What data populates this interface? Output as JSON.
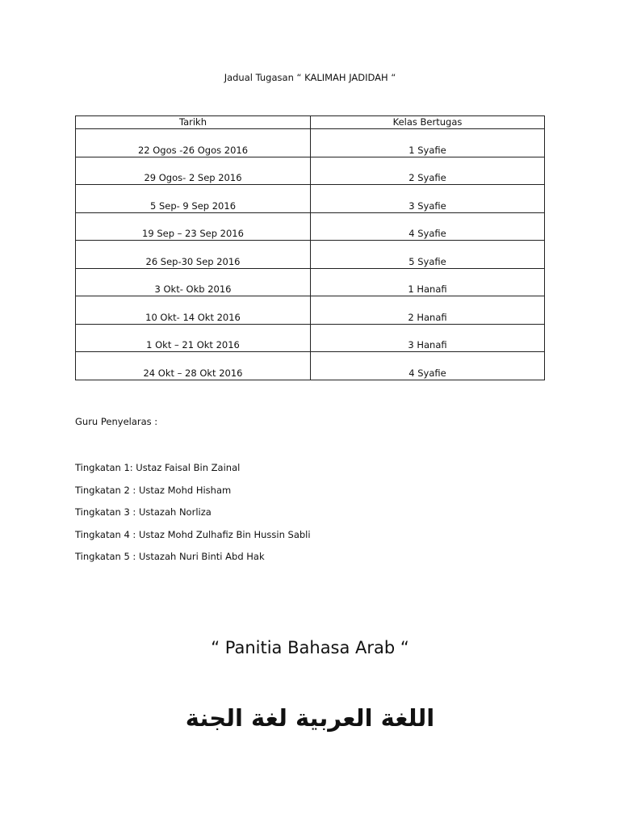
{
  "title": "Jadual Tugasan “ KALIMAH JADIDAH “",
  "table": {
    "headers": [
      "Tarikh",
      "Kelas Bertugas"
    ],
    "rows": [
      [
        "22 Ogos -26 Ogos 2016",
        "1 Syafie"
      ],
      [
        "29 Ogos- 2 Sep 2016",
        "2 Syafie"
      ],
      [
        "5 Sep- 9 Sep 2016",
        "3 Syafie"
      ],
      [
        "19 Sep – 23 Sep 2016",
        "4 Syafie"
      ],
      [
        "26 Sep-30 Sep 2016",
        "5 Syafie"
      ],
      [
        "3 Okt-  Okb 2016",
        "1 Hanafi"
      ],
      [
        "10 Okt- 14 Okt 2016",
        "2 Hanafi"
      ],
      [
        "1 Okt – 21 Okt 2016",
        "3 Hanafi"
      ],
      [
        "24 Okt – 28 Okt 2016",
        "4 Syafie"
      ]
    ]
  },
  "guru": {
    "heading": "Guru Penyelaras :",
    "items": [
      "Tingkatan 1: Ustaz Faisal Bin Zainal",
      "Tingkatan 2 : Ustaz Mohd Hisham",
      "Tingkatan 3 : Ustazah Norliza",
      "Tingkatan 4 : Ustaz Mohd Zulhafiz Bin Hussin Sabli",
      "Tingkatan 5 : Ustazah Nuri Binti Abd Hak"
    ]
  },
  "panitia": "“ Panitia Bahasa Arab “",
  "arabic": "اللغة العربية لغة الجنة"
}
